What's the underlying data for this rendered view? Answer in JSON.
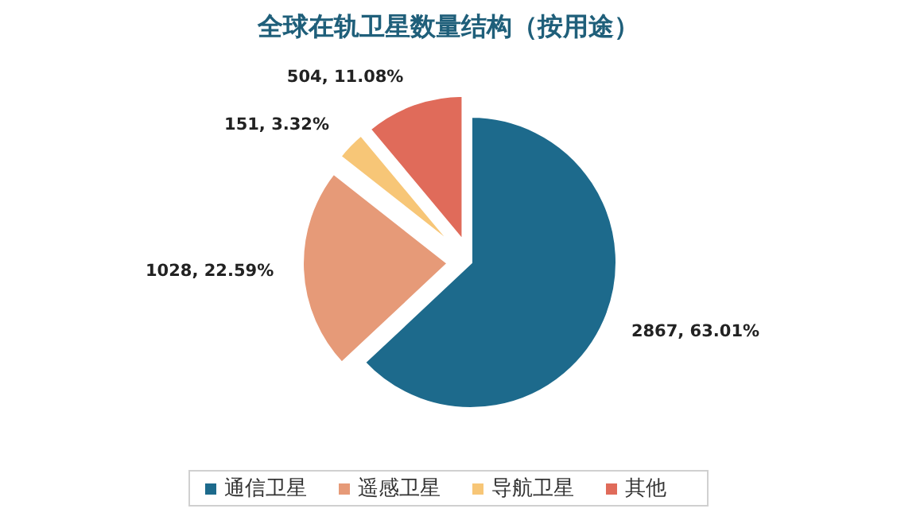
{
  "chart_data": {
    "type": "pie",
    "title": "全球在轨卫星数量结构（按用途）",
    "categories": [
      "通信卫星",
      "遥感卫星",
      "导航卫星",
      "其他"
    ],
    "values": [
      2867,
      1028,
      151,
      504
    ],
    "colors": [
      "#1d6a8c",
      "#e69a78",
      "#f7c677",
      "#e06b5a"
    ],
    "value_labels": [
      "2867, 63.01%",
      "1028, 22.59%",
      "151, 3.32%",
      "504, 11.08%"
    ],
    "legend": "bottom"
  }
}
